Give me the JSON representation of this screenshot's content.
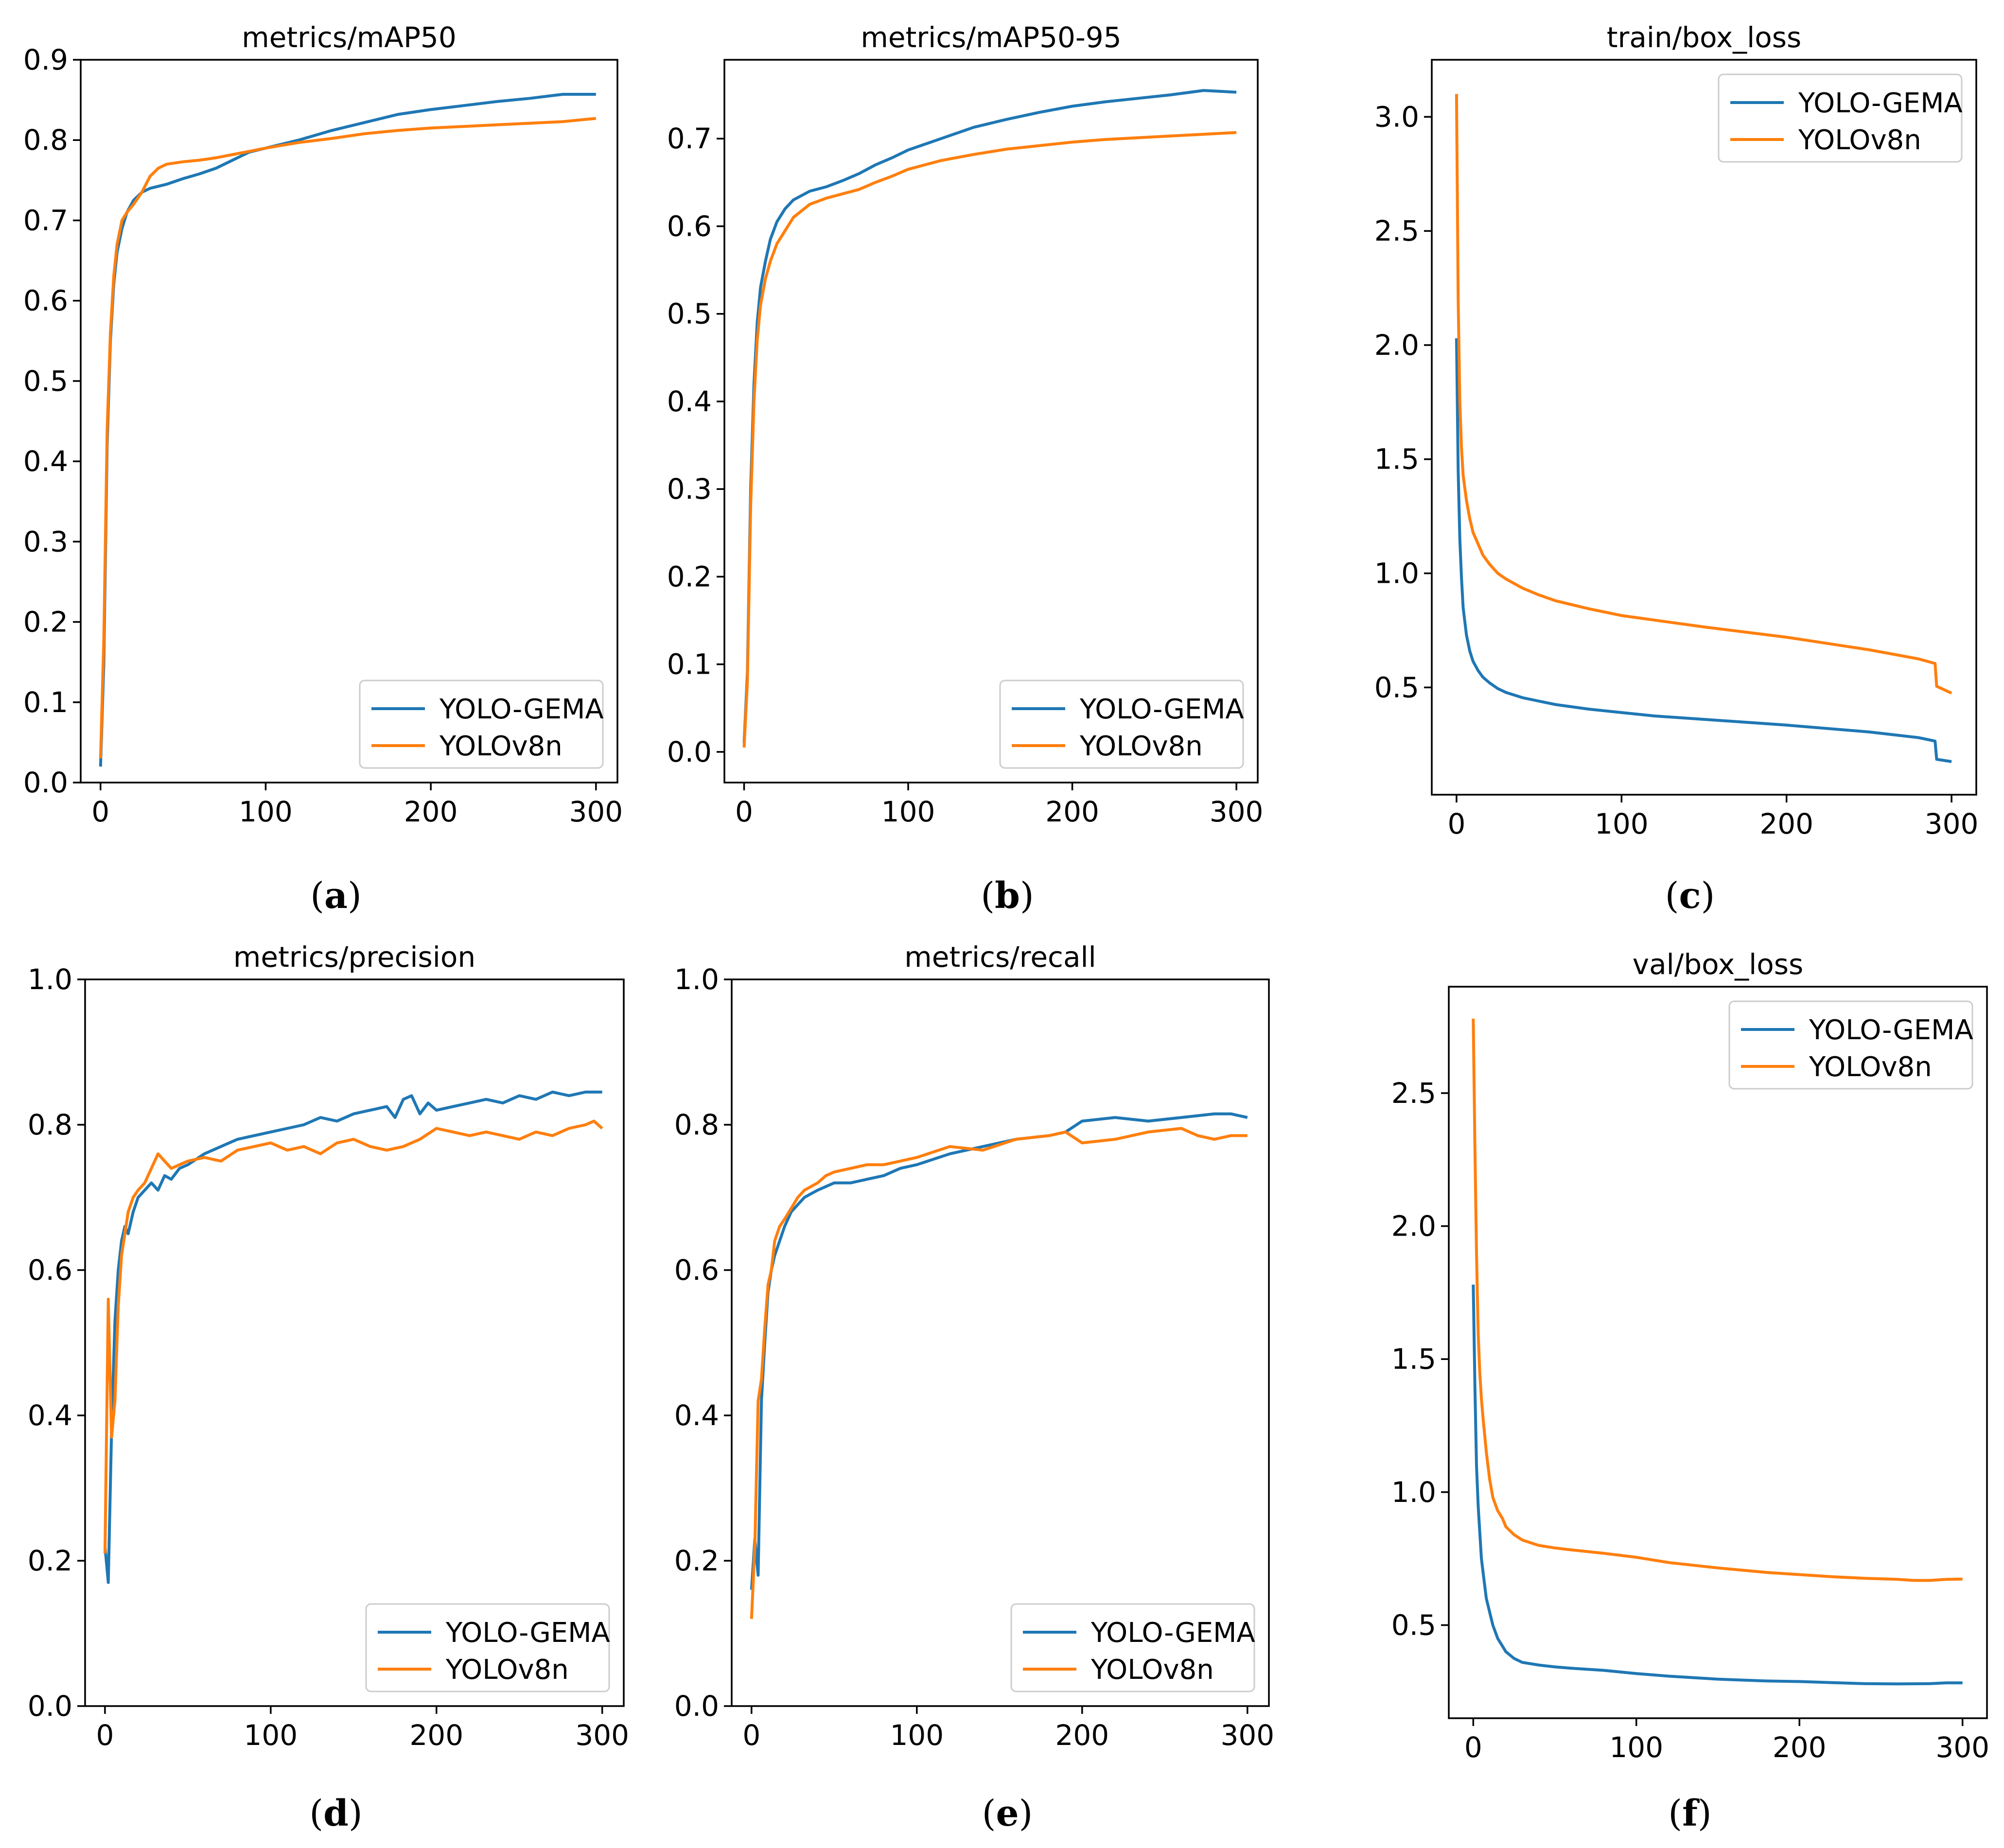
{
  "colors": {
    "series_a": "#1f77b4",
    "series_b": "#ff7f0e",
    "axis": "#000000"
  },
  "chart_data": [
    {
      "id": "a",
      "panel_label": "a",
      "type": "line",
      "title": "metrics/mAP50",
      "xlabel": "",
      "ylabel": "",
      "xlim": [
        -12,
        313
      ],
      "ylim": [
        0.0,
        0.9
      ],
      "xticks": [
        0,
        100,
        200,
        300
      ],
      "yticks": [
        0.0,
        0.1,
        0.2,
        0.3,
        0.4,
        0.5,
        0.6,
        0.7,
        0.8,
        0.9
      ],
      "ytick_labels": [
        "0.0",
        "0.1",
        "0.2",
        "0.3",
        "0.4",
        "0.5",
        "0.6",
        "0.7",
        "0.8",
        "0.9"
      ],
      "legend": {
        "placement": "bottom-right",
        "entries": [
          "YOLO-GEMA",
          "YOLOv8n"
        ]
      },
      "series": [
        {
          "name": "YOLO-GEMA",
          "color": "#1f77b4",
          "x": [
            0,
            2,
            4,
            6,
            8,
            10,
            13,
            16,
            20,
            25,
            30,
            40,
            50,
            60,
            70,
            80,
            90,
            100,
            120,
            140,
            160,
            180,
            200,
            220,
            240,
            260,
            280,
            290,
            300
          ],
          "y": [
            0.02,
            0.15,
            0.42,
            0.55,
            0.62,
            0.66,
            0.69,
            0.71,
            0.725,
            0.735,
            0.74,
            0.745,
            0.752,
            0.758,
            0.765,
            0.775,
            0.785,
            0.79,
            0.8,
            0.812,
            0.822,
            0.832,
            0.838,
            0.843,
            0.848,
            0.852,
            0.857,
            0.857,
            0.857
          ]
        },
        {
          "name": "YOLOv8n",
          "color": "#ff7f0e",
          "x": [
            0,
            2,
            4,
            6,
            8,
            10,
            13,
            16,
            20,
            25,
            30,
            35,
            40,
            50,
            60,
            70,
            80,
            90,
            100,
            120,
            140,
            160,
            180,
            200,
            220,
            240,
            260,
            280,
            290,
            300
          ],
          "y": [
            0.03,
            0.18,
            0.44,
            0.56,
            0.63,
            0.67,
            0.7,
            0.71,
            0.72,
            0.735,
            0.755,
            0.765,
            0.77,
            0.773,
            0.775,
            0.778,
            0.782,
            0.786,
            0.79,
            0.797,
            0.802,
            0.808,
            0.812,
            0.815,
            0.817,
            0.819,
            0.821,
            0.823,
            0.825,
            0.827
          ]
        }
      ]
    },
    {
      "id": "b",
      "panel_label": "b",
      "type": "line",
      "title": "metrics/mAP50-95",
      "xlabel": "",
      "ylabel": "",
      "xlim": [
        -12,
        313
      ],
      "ylim": [
        -0.035,
        0.79
      ],
      "xticks": [
        0,
        100,
        200,
        300
      ],
      "yticks": [
        0.0,
        0.1,
        0.2,
        0.3,
        0.4,
        0.5,
        0.6,
        0.7
      ],
      "ytick_labels": [
        "0.0",
        "0.1",
        "0.2",
        "0.3",
        "0.4",
        "0.5",
        "0.6",
        "0.7"
      ],
      "legend": {
        "placement": "bottom-right",
        "entries": [
          "YOLO-GEMA",
          "YOLOv8n"
        ]
      },
      "series": [
        {
          "name": "YOLO-GEMA",
          "color": "#1f77b4",
          "x": [
            0,
            2,
            4,
            6,
            8,
            10,
            13,
            16,
            20,
            25,
            30,
            40,
            50,
            60,
            70,
            80,
            90,
            100,
            120,
            140,
            160,
            180,
            200,
            220,
            240,
            260,
            280,
            290,
            300
          ],
          "y": [
            0.01,
            0.09,
            0.3,
            0.42,
            0.49,
            0.53,
            0.56,
            0.585,
            0.605,
            0.62,
            0.63,
            0.64,
            0.645,
            0.652,
            0.66,
            0.67,
            0.678,
            0.687,
            0.7,
            0.713,
            0.722,
            0.73,
            0.737,
            0.742,
            0.746,
            0.75,
            0.755,
            0.754,
            0.753
          ]
        },
        {
          "name": "YOLOv8n",
          "color": "#ff7f0e",
          "x": [
            0,
            2,
            4,
            6,
            8,
            10,
            13,
            16,
            20,
            25,
            30,
            40,
            50,
            60,
            70,
            80,
            90,
            100,
            120,
            140,
            160,
            180,
            200,
            220,
            240,
            260,
            280,
            290,
            300
          ],
          "y": [
            0.005,
            0.08,
            0.28,
            0.4,
            0.47,
            0.51,
            0.54,
            0.56,
            0.58,
            0.595,
            0.61,
            0.625,
            0.632,
            0.637,
            0.642,
            0.65,
            0.657,
            0.665,
            0.675,
            0.682,
            0.688,
            0.692,
            0.696,
            0.699,
            0.701,
            0.703,
            0.705,
            0.706,
            0.707
          ]
        }
      ]
    },
    {
      "id": "c",
      "panel_label": "c",
      "type": "line",
      "title": "train/box_loss",
      "xlabel": "",
      "ylabel": "",
      "xlim": [
        -15,
        315
      ],
      "ylim": [
        0.03,
        3.25
      ],
      "xticks": [
        0,
        100,
        200,
        300
      ],
      "yticks": [
        0.5,
        1.0,
        1.5,
        2.0,
        2.5,
        3.0
      ],
      "ytick_labels": [
        "0.5",
        "1.0",
        "1.5",
        "2.0",
        "2.5",
        "3.0"
      ],
      "legend": {
        "placement": "top-right",
        "entries": [
          "YOLO-GEMA",
          "YOLOv8n"
        ]
      },
      "series": [
        {
          "name": "YOLO-GEMA",
          "color": "#1f77b4",
          "x": [
            0,
            1,
            2,
            3,
            4,
            6,
            8,
            10,
            13,
            16,
            20,
            25,
            30,
            40,
            50,
            60,
            80,
            100,
            120,
            150,
            200,
            250,
            280,
            290,
            291,
            300
          ],
          "y": [
            2.03,
            1.45,
            1.15,
            0.98,
            0.85,
            0.73,
            0.66,
            0.615,
            0.575,
            0.545,
            0.52,
            0.495,
            0.478,
            0.455,
            0.44,
            0.425,
            0.405,
            0.39,
            0.375,
            0.36,
            0.335,
            0.305,
            0.28,
            0.265,
            0.185,
            0.175
          ]
        },
        {
          "name": "YOLOv8n",
          "color": "#ff7f0e",
          "x": [
            0,
            1,
            2,
            3,
            4,
            6,
            8,
            10,
            13,
            16,
            20,
            25,
            30,
            40,
            50,
            60,
            80,
            100,
            120,
            150,
            200,
            250,
            280,
            290,
            291,
            300
          ],
          "y": [
            3.1,
            2.2,
            1.75,
            1.55,
            1.43,
            1.32,
            1.24,
            1.18,
            1.13,
            1.08,
            1.04,
            1.0,
            0.975,
            0.935,
            0.905,
            0.88,
            0.845,
            0.815,
            0.795,
            0.765,
            0.72,
            0.665,
            0.625,
            0.605,
            0.505,
            0.475
          ]
        }
      ]
    },
    {
      "id": "d",
      "panel_label": "d",
      "type": "line",
      "title": "metrics/precision",
      "xlabel": "",
      "ylabel": "",
      "xlim": [
        -12,
        313
      ],
      "ylim": [
        0.0,
        1.0
      ],
      "xticks": [
        0,
        100,
        200,
        300
      ],
      "yticks": [
        0.0,
        0.2,
        0.4,
        0.6,
        0.8,
        1.0
      ],
      "ytick_labels": [
        "0.0",
        "0.2",
        "0.4",
        "0.6",
        "0.8",
        "1.0"
      ],
      "legend": {
        "placement": "bottom-right",
        "entries": [
          "YOLO-GEMA",
          "YOLOv8n"
        ]
      },
      "series": [
        {
          "name": "YOLO-GEMA",
          "color": "#1f77b4",
          "x": [
            0,
            2,
            4,
            6,
            8,
            10,
            12,
            14,
            17,
            20,
            24,
            28,
            32,
            36,
            40,
            45,
            50,
            60,
            70,
            80,
            90,
            100,
            110,
            120,
            130,
            140,
            150,
            160,
            170,
            175,
            180,
            185,
            190,
            195,
            200,
            210,
            220,
            230,
            240,
            250,
            260,
            270,
            280,
            290,
            300
          ],
          "y": [
            0.22,
            0.17,
            0.38,
            0.53,
            0.6,
            0.64,
            0.66,
            0.65,
            0.68,
            0.7,
            0.71,
            0.72,
            0.71,
            0.73,
            0.725,
            0.74,
            0.745,
            0.76,
            0.77,
            0.78,
            0.785,
            0.79,
            0.795,
            0.8,
            0.81,
            0.805,
            0.815,
            0.82,
            0.825,
            0.81,
            0.835,
            0.84,
            0.815,
            0.83,
            0.82,
            0.825,
            0.83,
            0.835,
            0.83,
            0.84,
            0.835,
            0.845,
            0.84,
            0.845,
            0.845
          ]
        },
        {
          "name": "YOLOv8n",
          "color": "#ff7f0e",
          "x": [
            0,
            2,
            4,
            6,
            8,
            10,
            12,
            14,
            17,
            20,
            24,
            28,
            32,
            36,
            40,
            45,
            50,
            60,
            70,
            80,
            90,
            100,
            110,
            120,
            130,
            140,
            150,
            160,
            170,
            180,
            190,
            200,
            210,
            220,
            230,
            240,
            250,
            260,
            270,
            280,
            290,
            295,
            300
          ],
          "y": [
            0.21,
            0.56,
            0.37,
            0.42,
            0.55,
            0.62,
            0.65,
            0.68,
            0.7,
            0.71,
            0.72,
            0.74,
            0.76,
            0.75,
            0.74,
            0.745,
            0.75,
            0.755,
            0.75,
            0.765,
            0.77,
            0.775,
            0.765,
            0.77,
            0.76,
            0.775,
            0.78,
            0.77,
            0.765,
            0.77,
            0.78,
            0.795,
            0.79,
            0.785,
            0.79,
            0.785,
            0.78,
            0.79,
            0.785,
            0.795,
            0.8,
            0.805,
            0.795
          ]
        }
      ]
    },
    {
      "id": "e",
      "panel_label": "e",
      "type": "line",
      "title": "metrics/recall",
      "xlabel": "",
      "ylabel": "",
      "xlim": [
        -12,
        313
      ],
      "ylim": [
        0.0,
        1.0
      ],
      "xticks": [
        0,
        100,
        200,
        300
      ],
      "yticks": [
        0.0,
        0.2,
        0.4,
        0.6,
        0.8,
        1.0
      ],
      "ytick_labels": [
        "0.0",
        "0.2",
        "0.4",
        "0.6",
        "0.8",
        "1.0"
      ],
      "legend": {
        "placement": "bottom-right",
        "entries": [
          "YOLO-GEMA",
          "YOLOv8n"
        ]
      },
      "series": [
        {
          "name": "YOLO-GEMA",
          "color": "#1f77b4",
          "x": [
            0,
            2,
            4,
            6,
            8,
            10,
            12,
            14,
            17,
            20,
            24,
            28,
            32,
            36,
            40,
            45,
            50,
            60,
            70,
            80,
            90,
            100,
            120,
            140,
            160,
            180,
            190,
            200,
            220,
            240,
            260,
            280,
            290,
            300
          ],
          "y": [
            0.16,
            0.23,
            0.18,
            0.42,
            0.5,
            0.57,
            0.6,
            0.62,
            0.64,
            0.66,
            0.68,
            0.69,
            0.7,
            0.705,
            0.71,
            0.715,
            0.72,
            0.72,
            0.725,
            0.73,
            0.74,
            0.745,
            0.76,
            0.77,
            0.78,
            0.785,
            0.79,
            0.805,
            0.81,
            0.805,
            0.81,
            0.815,
            0.815,
            0.81
          ]
        },
        {
          "name": "YOLOv8n",
          "color": "#ff7f0e",
          "x": [
            0,
            2,
            4,
            6,
            8,
            10,
            12,
            14,
            17,
            20,
            24,
            28,
            32,
            36,
            40,
            45,
            50,
            60,
            70,
            80,
            90,
            100,
            120,
            140,
            160,
            180,
            190,
            200,
            220,
            240,
            260,
            270,
            280,
            290,
            300
          ],
          "y": [
            0.12,
            0.22,
            0.42,
            0.45,
            0.52,
            0.58,
            0.6,
            0.64,
            0.66,
            0.67,
            0.685,
            0.7,
            0.71,
            0.715,
            0.72,
            0.73,
            0.735,
            0.74,
            0.745,
            0.745,
            0.75,
            0.755,
            0.77,
            0.765,
            0.78,
            0.785,
            0.79,
            0.775,
            0.78,
            0.79,
            0.795,
            0.785,
            0.78,
            0.785,
            0.785
          ]
        }
      ]
    },
    {
      "id": "f",
      "panel_label": "f",
      "type": "line",
      "title": "val/box_loss",
      "xlabel": "",
      "ylabel": "",
      "xlim": [
        -15,
        315
      ],
      "ylim": [
        0.15,
        2.9
      ],
      "xticks": [
        0,
        100,
        200,
        300
      ],
      "yticks": [
        0.5,
        1.0,
        1.5,
        2.0,
        2.5
      ],
      "ytick_labels": [
        "0.5",
        "1.0",
        "1.5",
        "2.0",
        "2.5"
      ],
      "legend": {
        "placement": "top-right",
        "entries": [
          "YOLO-GEMA",
          "YOLOv8n"
        ]
      },
      "series": [
        {
          "name": "YOLO-GEMA",
          "color": "#1f77b4",
          "x": [
            0,
            1,
            2,
            3,
            4,
            5,
            6,
            8,
            10,
            12,
            15,
            18,
            20,
            25,
            30,
            40,
            50,
            60,
            80,
            100,
            120,
            150,
            180,
            200,
            220,
            240,
            260,
            280,
            290,
            300
          ],
          "y": [
            1.78,
            1.4,
            1.1,
            0.95,
            0.85,
            0.75,
            0.7,
            0.6,
            0.55,
            0.5,
            0.45,
            0.42,
            0.4,
            0.375,
            0.36,
            0.35,
            0.343,
            0.338,
            0.33,
            0.318,
            0.308,
            0.297,
            0.29,
            0.288,
            0.284,
            0.28,
            0.279,
            0.28,
            0.283,
            0.283
          ]
        },
        {
          "name": "YOLOv8n",
          "color": "#ff7f0e",
          "x": [
            0,
            1,
            2,
            3,
            4,
            5,
            6,
            8,
            10,
            12,
            15,
            18,
            20,
            25,
            30,
            40,
            50,
            60,
            80,
            100,
            120,
            150,
            180,
            200,
            220,
            240,
            260,
            270,
            280,
            290,
            300
          ],
          "y": [
            2.78,
            2.3,
            1.9,
            1.6,
            1.45,
            1.35,
            1.28,
            1.15,
            1.05,
            0.98,
            0.93,
            0.9,
            0.87,
            0.84,
            0.82,
            0.8,
            0.79,
            0.783,
            0.77,
            0.755,
            0.735,
            0.715,
            0.698,
            0.69,
            0.682,
            0.676,
            0.672,
            0.668,
            0.668,
            0.672,
            0.673
          ]
        }
      ]
    }
  ]
}
